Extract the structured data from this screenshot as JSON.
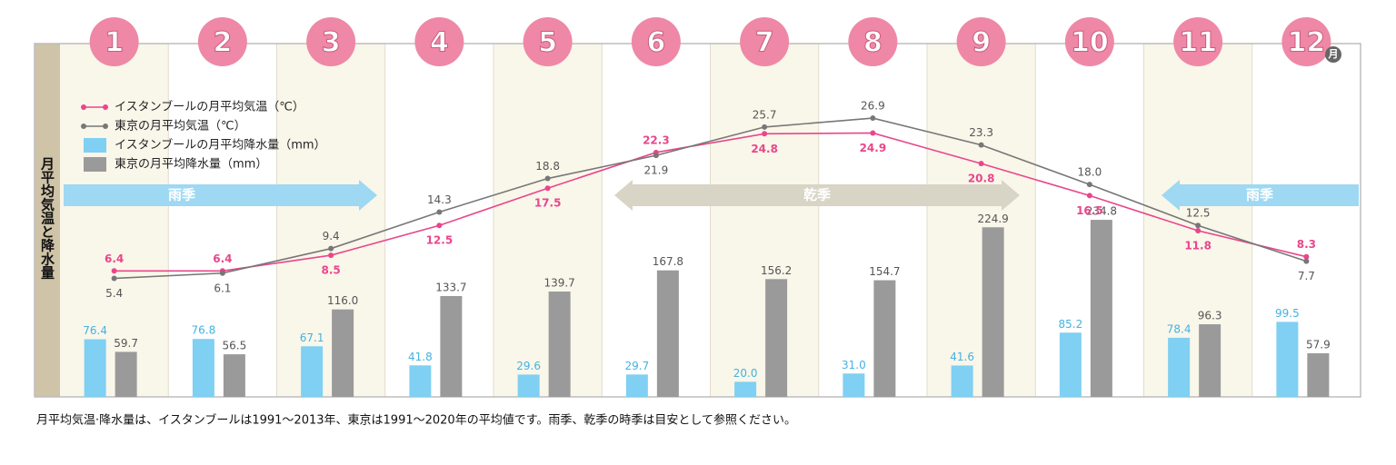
{
  "chart_data": {
    "type": "combo",
    "categories": [
      "1",
      "2",
      "3",
      "4",
      "5",
      "6",
      "7",
      "8",
      "9",
      "10",
      "11",
      "12"
    ],
    "category_unit": "月",
    "ylabel": "月平均気温と降水量",
    "ylim": [
      0,
      430
    ],
    "y2lim": [
      -10.5,
      33
    ],
    "series": [
      {
        "name": "イスタンブールの月平均気温（℃）",
        "type": "line",
        "axis": "y2",
        "color": "#e9468c",
        "label_color": "#e9468c",
        "values": [
          6.4,
          6.4,
          8.5,
          12.5,
          17.5,
          22.3,
          24.8,
          24.9,
          20.8,
          16.5,
          11.8,
          8.3
        ],
        "value_labels": [
          "6.4",
          "6.4",
          "8.5",
          "12.5",
          "17.5",
          "22.3",
          "24.8",
          "24.9",
          "20.8",
          "16.5",
          "11.8",
          "8.3"
        ]
      },
      {
        "name": "東京の月平均気温（℃）",
        "type": "line",
        "axis": "y2",
        "color": "#777777",
        "label_color": "#555555",
        "values": [
          5.4,
          6.1,
          9.4,
          14.3,
          18.8,
          21.9,
          25.7,
          26.9,
          23.3,
          18.0,
          12.5,
          7.7
        ],
        "value_labels": [
          "5.4",
          "6.1",
          "9.4",
          "14.3",
          "18.8",
          "21.9",
          "25.7",
          "26.9",
          "23.3",
          "18.0",
          "12.5",
          "7.7"
        ]
      },
      {
        "name": "イスタンブールの月平均降水量（mm）",
        "type": "bar",
        "color": "#7fd0f2",
        "label_color": "#45b2e0",
        "values": [
          76.4,
          76.8,
          67.1,
          41.8,
          29.6,
          29.7,
          20.0,
          31.0,
          41.6,
          85.2,
          78.4,
          99.5
        ],
        "value_labels": [
          "76.4",
          "76.8",
          "67.1",
          "41.8",
          "29.6",
          "29.7",
          "20.0",
          "31.0",
          "41.6",
          "85.2",
          "78.4",
          "99.5"
        ]
      },
      {
        "name": "東京の月平均降水量（mm）",
        "type": "bar",
        "color": "#9a9a9a",
        "label_color": "#555555",
        "values": [
          59.7,
          56.5,
          116.0,
          133.7,
          139.7,
          167.8,
          156.2,
          154.7,
          224.9,
          234.8,
          96.3,
          57.9
        ],
        "value_labels": [
          "59.7",
          "56.5",
          "116.0",
          "133.7",
          "139.7",
          "167.8",
          "156.2",
          "154.7",
          "224.9",
          "234.8",
          "96.3",
          "57.9"
        ]
      }
    ],
    "seasons": [
      "雨季",
      "乾季",
      "雨季"
    ],
    "note": "月平均気温·降水量は、イスタンブールは1991～2013年、東京は1991～2020年の平均値です。雨季、乾季の時季は目安として参照ください。"
  }
}
